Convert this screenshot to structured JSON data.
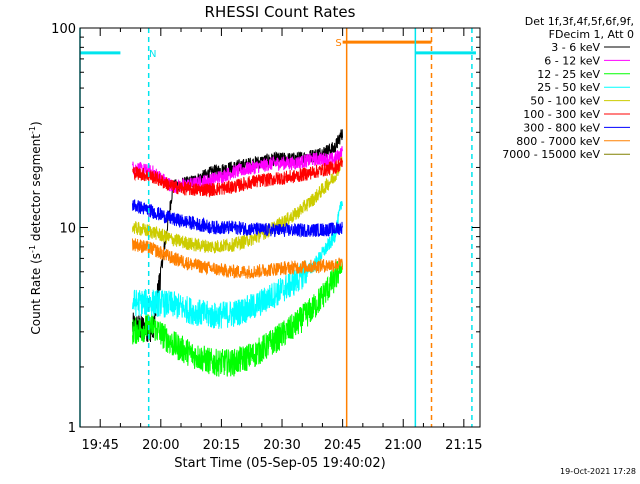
{
  "chart_data": {
    "type": "line",
    "title": "RHESSI Count Rates",
    "xlabel": "Start Time (05-Sep-05 19:40:02)",
    "ylabel_main": "Count Rate (s",
    "ylabel_sup": "-1",
    "ylabel_mid": " detector segment",
    "ylabel_sup2": "-1",
    "ylabel_end": ")",
    "y_scale": "log",
    "ylim": [
      1,
      100
    ],
    "xlim": [
      "19:40",
      "21:19"
    ],
    "x_ticks": [
      "19:45",
      "20:00",
      "20:15",
      "20:30",
      "20:45",
      "21:00",
      "21:15"
    ],
    "y_ticks": [
      "1",
      "10",
      "100"
    ],
    "legend_header": [
      "Det 1f,3f,4f,5f,6f,9f,",
      "FDecim 1, Att 0"
    ],
    "legend_position": "right",
    "series": [
      {
        "name": "3 - 6 keV",
        "color": "#000000",
        "x": [
          "19:53",
          "19:58",
          "20:03",
          "20:08",
          "20:13",
          "20:18",
          "20:23",
          "20:28",
          "20:33",
          "20:38",
          "20:43",
          "20:45"
        ],
        "y": [
          3.2,
          3.1,
          16,
          17,
          19,
          20,
          21,
          22,
          22,
          23,
          25,
          30
        ]
      },
      {
        "name": "6 - 12 keV",
        "color": "#ff00ff",
        "x": [
          "19:53",
          "19:58",
          "20:03",
          "20:08",
          "20:13",
          "20:18",
          "20:23",
          "20:28",
          "20:33",
          "20:38",
          "20:43",
          "20:45"
        ],
        "y": [
          20,
          19,
          16,
          16.5,
          17.5,
          19,
          20,
          21,
          21,
          22,
          22,
          24
        ]
      },
      {
        "name": "12 - 25 keV",
        "color": "#00ff00",
        "x": [
          "19:53",
          "19:58",
          "20:03",
          "20:08",
          "20:13",
          "20:18",
          "20:23",
          "20:28",
          "20:33",
          "20:38",
          "20:43",
          "20:45"
        ],
        "y": [
          3.0,
          3.2,
          2.6,
          2.3,
          2.1,
          2.1,
          2.3,
          2.7,
          3.2,
          4.0,
          5.5,
          6.5
        ]
      },
      {
        "name": "25 - 50 keV",
        "color": "#00ffff",
        "x": [
          "19:53",
          "19:58",
          "20:03",
          "20:08",
          "20:13",
          "20:18",
          "20:23",
          "20:28",
          "20:33",
          "20:38",
          "20:43",
          "20:45"
        ],
        "y": [
          4.2,
          4.2,
          4.1,
          3.8,
          3.6,
          3.7,
          4.0,
          4.6,
          5.3,
          6.5,
          9.0,
          14
        ]
      },
      {
        "name": "50 - 100 keV",
        "color": "#cccc00",
        "x": [
          "19:53",
          "19:58",
          "20:03",
          "20:08",
          "20:13",
          "20:18",
          "20:23",
          "20:28",
          "20:33",
          "20:38",
          "20:43",
          "20:45"
        ],
        "y": [
          10,
          9.5,
          8.7,
          8.2,
          8.0,
          8.2,
          8.8,
          10,
          11.5,
          14,
          18,
          22
        ]
      },
      {
        "name": "100 - 300 keV",
        "color": "#ff0000",
        "x": [
          "19:53",
          "19:58",
          "20:03",
          "20:08",
          "20:13",
          "20:18",
          "20:23",
          "20:28",
          "20:33",
          "20:38",
          "20:43",
          "20:45"
        ],
        "y": [
          19,
          18,
          16,
          15.5,
          15.5,
          16,
          17,
          17.5,
          18,
          19,
          20,
          21
        ]
      },
      {
        "name": "300 - 800 keV",
        "color": "#0000ff",
        "x": [
          "19:53",
          "19:58",
          "20:03",
          "20:08",
          "20:13",
          "20:18",
          "20:23",
          "20:28",
          "20:33",
          "20:38",
          "20:43",
          "20:45"
        ],
        "y": [
          13,
          12,
          11,
          10.5,
          10,
          10,
          9.8,
          9.7,
          9.7,
          9.7,
          9.8,
          10
        ]
      },
      {
        "name": "800 - 7000 keV",
        "color": "#ff8000",
        "x": [
          "19:53",
          "19:58",
          "20:03",
          "20:08",
          "20:13",
          "20:18",
          "20:23",
          "20:28",
          "20:33",
          "20:38",
          "20:43",
          "20:45"
        ],
        "y": [
          8.3,
          7.8,
          7.0,
          6.5,
          6.2,
          6.0,
          6.0,
          6.2,
          6.3,
          6.4,
          6.5,
          6.6
        ]
      },
      {
        "name": "7000 - 15000 keV",
        "color": "#808000",
        "x": [],
        "y": []
      }
    ],
    "markers": [
      {
        "type": "segment",
        "color": "#00e5ee",
        "x": [
          "19:40",
          "19:50"
        ],
        "y": 75
      },
      {
        "type": "segment",
        "color": "#00e5ee",
        "x": [
          "21:03",
          "21:18"
        ],
        "y": 75
      },
      {
        "type": "segment",
        "color": "#ff8000",
        "x": [
          "20:45",
          "21:07"
        ],
        "y": 85
      },
      {
        "type": "vline",
        "color": "#00e5ee",
        "x": "19:40",
        "style": "solid"
      },
      {
        "type": "vline",
        "color": "#00e5ee",
        "x": "19:57",
        "style": "dashed"
      },
      {
        "type": "vline",
        "color": "#00e5ee",
        "x": "21:03",
        "style": "solid"
      },
      {
        "type": "vline",
        "color": "#00e5ee",
        "x": "21:17",
        "style": "dashed"
      },
      {
        "type": "vline",
        "color": "#ff8000",
        "x": "20:46",
        "style": "solid"
      },
      {
        "type": "vline",
        "color": "#ff8000",
        "x": "21:07",
        "style": "dashed"
      }
    ],
    "flags": [
      {
        "label": "N",
        "color": "#00e5ee",
        "x": "19:58",
        "y": 75
      },
      {
        "label": "S",
        "color": "#ff8000",
        "x": "20:44",
        "y": 85
      }
    ]
  },
  "footer_timestamp": "19-Oct-2021 17:28"
}
